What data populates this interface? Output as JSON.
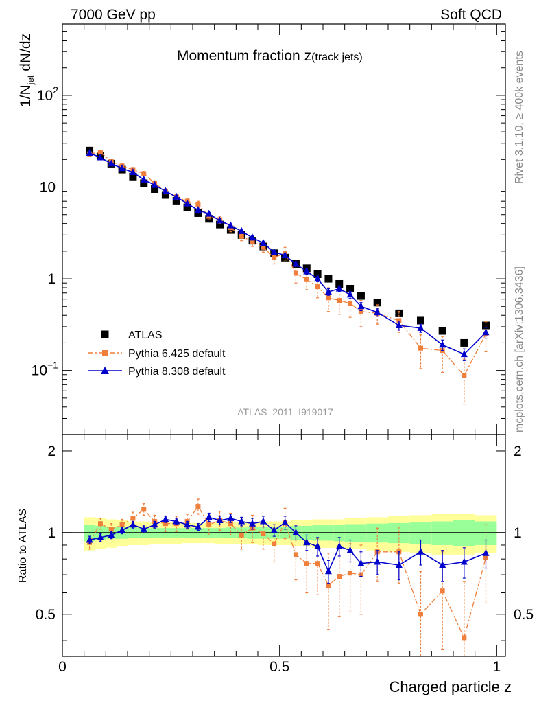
{
  "header": {
    "left": "7000 GeV pp",
    "right": "Soft QCD"
  },
  "side": {
    "rivet": "Rivet 3.1.10, ≥ 400k events",
    "source": "mcplots.cern.ch [arXiv:1306.3436]"
  },
  "chart_data": [
    {
      "type": "scatter",
      "panel": "main",
      "title": "Momentum fraction",
      "title_var": "z",
      "title_sub": "(track jets)",
      "ylabel": "1/N_jet dN/dz",
      "watermark": "ATLAS_2011_I919017",
      "yscale": "log",
      "ylim": [
        0.02,
        600
      ],
      "xlim": [
        0,
        1.02
      ],
      "legend_position": "lower-left",
      "series": [
        {
          "name": "ATLAS",
          "color": "#000000",
          "marker": "square",
          "x": [
            0.0625,
            0.0875,
            0.1125,
            0.1375,
            0.1625,
            0.1875,
            0.2125,
            0.2375,
            0.2625,
            0.2875,
            0.3125,
            0.3375,
            0.3625,
            0.3875,
            0.4125,
            0.4375,
            0.4625,
            0.4875,
            0.5125,
            0.5375,
            0.5625,
            0.5875,
            0.6125,
            0.6375,
            0.6625,
            0.6875,
            0.725,
            0.775,
            0.825,
            0.875,
            0.925,
            0.975
          ],
          "y": [
            25.0,
            22.0,
            18.0,
            15.5,
            13.0,
            11.0,
            9.5,
            8.2,
            7.1,
            6.0,
            5.2,
            4.5,
            3.9,
            3.4,
            3.0,
            2.6,
            2.25,
            1.9,
            1.7,
            1.45,
            1.3,
            1.12,
            1.0,
            0.88,
            0.78,
            0.65,
            0.55,
            0.42,
            0.35,
            0.27,
            0.2,
            0.31
          ]
        },
        {
          "name": "Pythia 6.425 default",
          "color": "#f07f3c",
          "marker": "square",
          "line": "dashdot",
          "x": [
            0.0625,
            0.0875,
            0.1125,
            0.1375,
            0.1625,
            0.1875,
            0.2125,
            0.2375,
            0.2625,
            0.2875,
            0.3125,
            0.3375,
            0.3625,
            0.3875,
            0.4125,
            0.4375,
            0.4625,
            0.4875,
            0.5125,
            0.5375,
            0.5625,
            0.5875,
            0.6125,
            0.6375,
            0.6625,
            0.6875,
            0.725,
            0.775,
            0.825,
            0.875,
            0.925,
            0.975
          ],
          "y": [
            23.0,
            24.0,
            19.0,
            17.0,
            15.5,
            14.0,
            11.0,
            9.0,
            7.8,
            7.0,
            6.5,
            4.8,
            4.4,
            3.6,
            2.9,
            2.55,
            2.2,
            1.7,
            1.9,
            1.15,
            0.98,
            0.82,
            0.62,
            0.58,
            0.54,
            0.44,
            0.42,
            0.35,
            0.175,
            0.165,
            0.088,
            0.25
          ],
          "err": [
            1.2,
            1.3,
            1.0,
            0.9,
            0.9,
            0.8,
            0.7,
            0.6,
            0.5,
            0.5,
            0.5,
            0.4,
            0.4,
            0.35,
            0.3,
            0.3,
            0.25,
            0.25,
            0.3,
            0.25,
            0.22,
            0.2,
            0.18,
            0.17,
            0.16,
            0.14,
            0.1,
            0.09,
            0.07,
            0.07,
            0.045,
            0.09
          ]
        },
        {
          "name": "Pythia 8.308 default",
          "color": "#0000cc",
          "marker": "triangle",
          "line": "solid",
          "x": [
            0.0625,
            0.0875,
            0.1125,
            0.1375,
            0.1625,
            0.1875,
            0.2125,
            0.2375,
            0.2625,
            0.2875,
            0.3125,
            0.3375,
            0.3625,
            0.3875,
            0.4125,
            0.4375,
            0.4625,
            0.4875,
            0.5125,
            0.5375,
            0.5625,
            0.5875,
            0.6125,
            0.6375,
            0.6625,
            0.6875,
            0.725,
            0.775,
            0.825,
            0.875,
            0.925,
            0.975
          ],
          "y": [
            23.5,
            21.0,
            18.0,
            16.0,
            14.5,
            12.0,
            10.5,
            9.0,
            7.8,
            6.6,
            5.6,
            5.1,
            4.3,
            3.8,
            3.3,
            2.8,
            2.45,
            1.95,
            1.8,
            1.45,
            1.2,
            1.0,
            0.72,
            0.78,
            0.67,
            0.5,
            0.43,
            0.31,
            0.29,
            0.19,
            0.15,
            0.26
          ],
          "err": [
            0.6,
            0.6,
            0.5,
            0.4,
            0.4,
            0.35,
            0.3,
            0.3,
            0.25,
            0.22,
            0.2,
            0.18,
            0.17,
            0.15,
            0.14,
            0.13,
            0.12,
            0.1,
            0.1,
            0.09,
            0.08,
            0.07,
            0.06,
            0.06,
            0.06,
            0.05,
            0.04,
            0.035,
            0.03,
            0.025,
            0.022,
            0.035
          ]
        }
      ],
      "yticks": [
        {
          "value": 0.1,
          "base": "10",
          "exp": "−1"
        },
        {
          "value": 1,
          "text": "1"
        },
        {
          "value": 10,
          "text": "10"
        },
        {
          "value": 100,
          "base": "10",
          "exp": "2"
        }
      ]
    },
    {
      "type": "scatter",
      "panel": "ratio",
      "ylabel": "Ratio to ATLAS",
      "xlabel": "Charged particle z",
      "ylim": [
        0.35,
        2.3
      ],
      "xlim": [
        0,
        1.02
      ],
      "xticks": [
        "0",
        "0.5",
        "1"
      ],
      "yticks": [
        "0.5",
        "1",
        "2"
      ],
      "bands": {
        "edges": [
          0.05,
          0.075,
          0.1,
          0.125,
          0.15,
          0.175,
          0.2,
          0.225,
          0.25,
          0.275,
          0.3,
          0.325,
          0.35,
          0.375,
          0.4,
          0.425,
          0.45,
          0.475,
          0.5,
          0.525,
          0.55,
          0.575,
          0.6,
          0.625,
          0.65,
          0.675,
          0.7,
          0.75,
          0.8,
          0.85,
          0.9,
          0.95,
          1.0
        ],
        "inner": [
          0.07,
          0.06,
          0.05,
          0.05,
          0.045,
          0.045,
          0.04,
          0.04,
          0.04,
          0.04,
          0.04,
          0.04,
          0.04,
          0.045,
          0.045,
          0.05,
          0.05,
          0.05,
          0.05,
          0.06,
          0.06,
          0.065,
          0.065,
          0.07,
          0.075,
          0.075,
          0.08,
          0.085,
          0.09,
          0.1,
          0.11,
          0.1
        ],
        "outer": [
          0.14,
          0.13,
          0.12,
          0.11,
          0.1,
          0.1,
          0.09,
          0.09,
          0.09,
          0.085,
          0.085,
          0.085,
          0.09,
          0.09,
          0.095,
          0.095,
          0.1,
          0.1,
          0.1,
          0.11,
          0.11,
          0.12,
          0.12,
          0.12,
          0.13,
          0.13,
          0.14,
          0.15,
          0.16,
          0.17,
          0.17,
          0.16
        ],
        "inner_color": "#99ff99",
        "outer_color": "#ffff99"
      },
      "series": [
        {
          "name": "Pythia 6.425 default",
          "color": "#f07f3c",
          "line": "dashdot",
          "x": [
            0.0625,
            0.0875,
            0.1125,
            0.1375,
            0.1625,
            0.1875,
            0.2125,
            0.2375,
            0.2625,
            0.2875,
            0.3125,
            0.3375,
            0.3625,
            0.3875,
            0.4125,
            0.4375,
            0.4625,
            0.4875,
            0.5125,
            0.5375,
            0.5625,
            0.5875,
            0.6125,
            0.6375,
            0.6625,
            0.6875,
            0.725,
            0.775,
            0.825,
            0.875,
            0.925,
            0.975
          ],
          "y": [
            0.92,
            1.08,
            1.03,
            1.07,
            1.13,
            1.22,
            1.1,
            1.08,
            1.08,
            1.1,
            1.25,
            1.07,
            1.11,
            1.08,
            0.98,
            1.04,
            0.99,
            0.91,
            1.09,
            0.83,
            0.77,
            0.77,
            0.64,
            0.69,
            0.71,
            0.7,
            0.85,
            0.85,
            0.5,
            0.61,
            0.41,
            0.81
          ],
          "err": [
            0.05,
            0.05,
            0.05,
            0.05,
            0.06,
            0.06,
            0.06,
            0.07,
            0.07,
            0.07,
            0.08,
            0.09,
            0.09,
            0.1,
            0.11,
            0.12,
            0.12,
            0.13,
            0.14,
            0.16,
            0.17,
            0.18,
            0.2,
            0.2,
            0.2,
            0.2,
            0.19,
            0.2,
            0.22,
            0.24,
            0.25,
            0.26
          ]
        },
        {
          "name": "Pythia 8.308 default",
          "color": "#0000cc",
          "line": "solid",
          "x": [
            0.0625,
            0.0875,
            0.1125,
            0.1375,
            0.1625,
            0.1875,
            0.2125,
            0.2375,
            0.2625,
            0.2875,
            0.3125,
            0.3375,
            0.3625,
            0.3875,
            0.4125,
            0.4375,
            0.4625,
            0.4875,
            0.5125,
            0.5375,
            0.5625,
            0.5875,
            0.6125,
            0.6375,
            0.6625,
            0.6875,
            0.725,
            0.775,
            0.825,
            0.875,
            0.925,
            0.975
          ],
          "y": [
            0.94,
            0.96,
            0.98,
            1.02,
            1.07,
            1.03,
            1.07,
            1.12,
            1.1,
            1.07,
            1.05,
            1.14,
            1.11,
            1.13,
            1.1,
            1.08,
            1.1,
            1.02,
            1.09,
            1.0,
            0.92,
            0.89,
            0.72,
            0.89,
            0.86,
            0.77,
            0.78,
            0.76,
            0.85,
            0.76,
            0.78,
            0.84
          ],
          "err": [
            0.03,
            0.03,
            0.03,
            0.03,
            0.03,
            0.03,
            0.03,
            0.03,
            0.03,
            0.03,
            0.03,
            0.04,
            0.04,
            0.04,
            0.04,
            0.05,
            0.05,
            0.05,
            0.06,
            0.06,
            0.06,
            0.07,
            0.07,
            0.07,
            0.08,
            0.08,
            0.08,
            0.09,
            0.09,
            0.1,
            0.1,
            0.1
          ]
        }
      ]
    }
  ]
}
